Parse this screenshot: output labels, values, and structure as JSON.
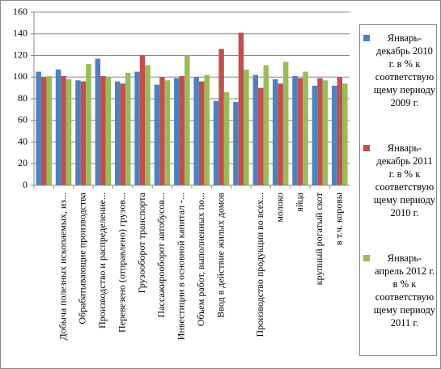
{
  "chart_data": {
    "type": "bar",
    "categories": [
      null,
      "Добыча полезных ископаемых, из...",
      "Обрабатывающие производства",
      "Производство и распределение...",
      "Перевезено (отправлено) грузов...",
      "Грузооборот транспорта",
      "Пассажирооборот автобусов...",
      "Инвестиции в основной капитал -...",
      "Объем работ, выполненных по...",
      "Ввод в действие жилых домов",
      null,
      "Производство продукции во всех...",
      "молоко",
      "яйца",
      "крупный рогатый скот",
      "в т.ч. коровы"
    ],
    "series": [
      {
        "name": "Январь-декабрь 2010 г. в % к соответствующему периоду 2009 г.",
        "color": "#4f81bd",
        "values": [
          105,
          107,
          97,
          117,
          96,
          105,
          93,
          99,
          100,
          78,
          77,
          102,
          98,
          101,
          92,
          92
        ]
      },
      {
        "name": "Январь-декабрь 2011 г. в % к соответствующему периоду 2010 г.",
        "color": "#c0504d",
        "values": [
          100,
          101,
          96,
          101,
          94,
          120,
          100,
          101,
          96,
          126,
          141,
          90,
          94,
          99,
          99,
          100
        ]
      },
      {
        "name": "Январь-апрель 2012 г. в % к соответствующему периоду 2011 г.",
        "color": "#9bbb59",
        "values": [
          101,
          98,
          112,
          100,
          104,
          111,
          97,
          120,
          102,
          86,
          107,
          111,
          114,
          105,
          97,
          94
        ]
      }
    ],
    "ylim": [
      0,
      160
    ],
    "yticks": [
      0,
      20,
      40,
      60,
      80,
      100,
      120,
      140,
      160
    ],
    "grid": true,
    "legend": "right"
  }
}
